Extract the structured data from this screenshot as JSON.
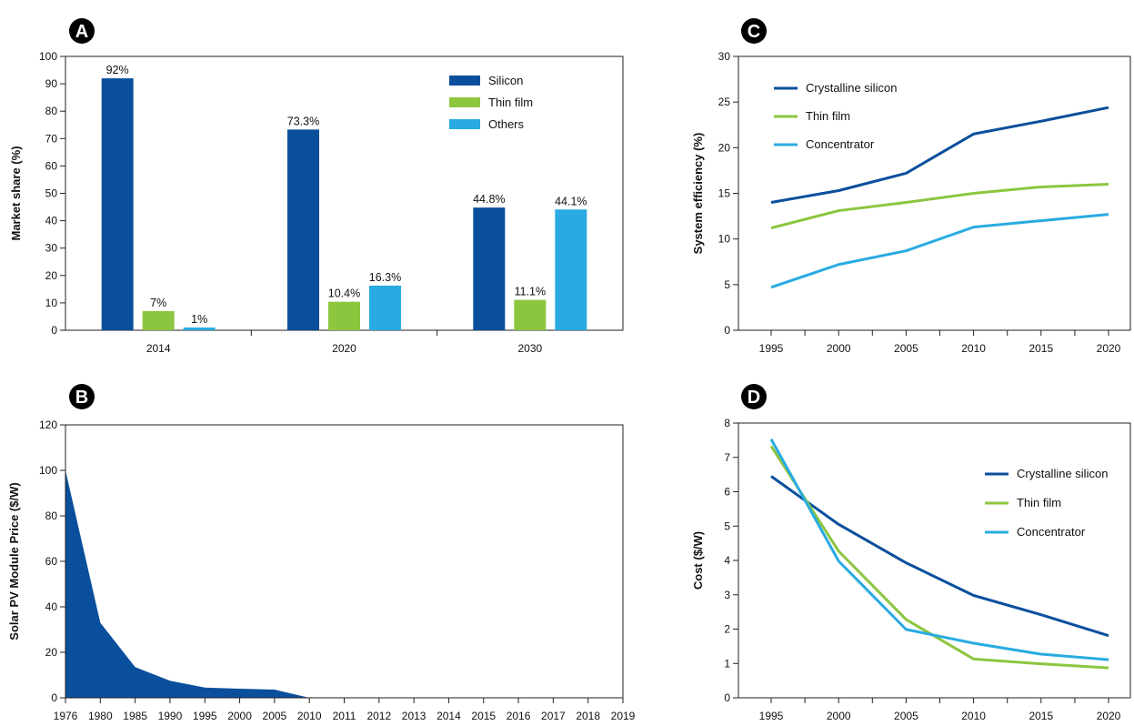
{
  "colors": {
    "silicon": "#0a4f9c",
    "thin_film": "#8cc63f",
    "others": "#29abe2",
    "axis": "#222222",
    "badge": "#000000"
  },
  "chart_data": [
    {
      "panel": "A",
      "type": "bar",
      "title": "",
      "xlabel": "",
      "ylabel": "Market share (%)",
      "ylim": [
        0,
        100
      ],
      "yticks": [
        0,
        10,
        20,
        30,
        40,
        50,
        60,
        70,
        80,
        90,
        100
      ],
      "categories": [
        "2014",
        "2020",
        "2030"
      ],
      "series": [
        {
          "name": "Silicon",
          "color": "#0a4f9c",
          "values": [
            92,
            73.3,
            44.8
          ],
          "labels": [
            "92%",
            "73.3%",
            "44.8%"
          ]
        },
        {
          "name": "Thin film",
          "color": "#8cc63f",
          "values": [
            7,
            10.4,
            11.1
          ],
          "labels": [
            "7%",
            "10.4%",
            "11.1%"
          ]
        },
        {
          "name": "Others",
          "color": "#29abe2",
          "values": [
            1,
            16.3,
            44.1
          ],
          "labels": [
            "1%",
            "16.3%",
            "44.1%"
          ]
        }
      ],
      "legend": "top-right",
      "grid": false
    },
    {
      "panel": "B",
      "type": "area",
      "title": "",
      "xlabel": "",
      "ylabel": "Solar PV Module Price ($/W)",
      "ylim": [
        0,
        120
      ],
      "yticks": [
        0,
        20,
        40,
        60,
        80,
        100,
        120
      ],
      "categories": [
        "1976",
        "1980",
        "1985",
        "1990",
        "1995",
        "2000",
        "2005",
        "2010",
        "2011",
        "2012",
        "2013",
        "2014",
        "2015",
        "2016",
        "2017",
        "2018",
        "2019"
      ],
      "series": [
        {
          "color": "#0a4f9c",
          "values": [
            100,
            33,
            13.5,
            7.5,
            4.5,
            4,
            3.6,
            0,
            0,
            0,
            0,
            0,
            0,
            0,
            0,
            0,
            0
          ]
        }
      ],
      "grid": false
    },
    {
      "panel": "C",
      "type": "line",
      "title": "",
      "xlabel": "",
      "ylabel": "System efficiency (%)",
      "ylim": [
        0,
        30
      ],
      "yticks": [
        0,
        5,
        10,
        15,
        20,
        25,
        30
      ],
      "x": [
        1995,
        2000,
        2005,
        2010,
        2015,
        2020
      ],
      "series": [
        {
          "name": "Crystalline silicon",
          "color": "#0a4f9c",
          "values": [
            14,
            15.3,
            17.2,
            21.5,
            22.9,
            24.4
          ]
        },
        {
          "name": "Thin film",
          "color": "#8cc63f",
          "values": [
            11.2,
            13.1,
            14,
            15,
            15.7,
            16
          ]
        },
        {
          "name": "Concentrator",
          "color": "#29abe2",
          "values": [
            4.7,
            7.2,
            8.7,
            11.3,
            12,
            12.7
          ]
        }
      ],
      "legend": "top-left",
      "grid": false
    },
    {
      "panel": "D",
      "type": "line",
      "title": "",
      "xlabel": "",
      "ylabel": "Cost ($/W)",
      "ylim": [
        0,
        8
      ],
      "yticks": [
        0,
        1,
        2,
        3,
        4,
        5,
        6,
        7,
        8
      ],
      "x": [
        1995,
        2000,
        2005,
        2010,
        2015,
        2020
      ],
      "series": [
        {
          "name": "Crystalline silicon",
          "color": "#0a4f9c",
          "values": [
            6.45,
            5.05,
            3.93,
            2.98,
            2.42,
            1.81
          ]
        },
        {
          "name": "Thin film",
          "color": "#8cc63f",
          "values": [
            7.33,
            4.27,
            2.28,
            1.13,
            0.99,
            0.87
          ]
        },
        {
          "name": "Concentrator",
          "color": "#29abe2",
          "values": [
            7.53,
            3.98,
            1.99,
            1.59,
            1.27,
            1.11
          ]
        }
      ],
      "legend": "top-right",
      "grid": false
    }
  ]
}
